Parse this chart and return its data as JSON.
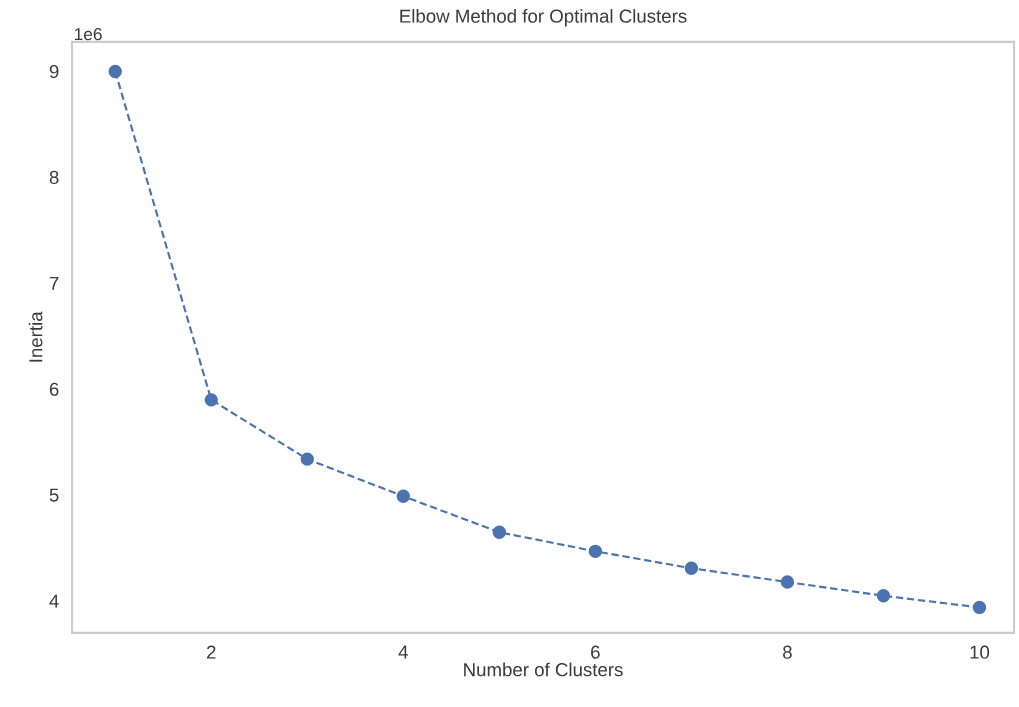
{
  "chart_data": {
    "type": "line",
    "title": "Elbow Method for Optimal Clusters",
    "xlabel": "Number of Clusters",
    "ylabel": "Inertia",
    "x": [
      1,
      2,
      3,
      4,
      5,
      6,
      7,
      8,
      9,
      10
    ],
    "values": [
      9.0,
      5.9,
      5.34,
      4.99,
      4.65,
      4.47,
      4.31,
      4.18,
      4.05,
      3.94
    ],
    "color": "#4c72b0",
    "marker": "circle",
    "line_style": "dashed",
    "xlim": [
      0.55,
      10.36
    ],
    "ylim": [
      3.7,
      9.28
    ],
    "xticks": [
      2,
      4,
      6,
      8,
      10
    ],
    "yticks": [
      4,
      5,
      6,
      7,
      8,
      9
    ],
    "annotations": [
      "1e6"
    ]
  }
}
